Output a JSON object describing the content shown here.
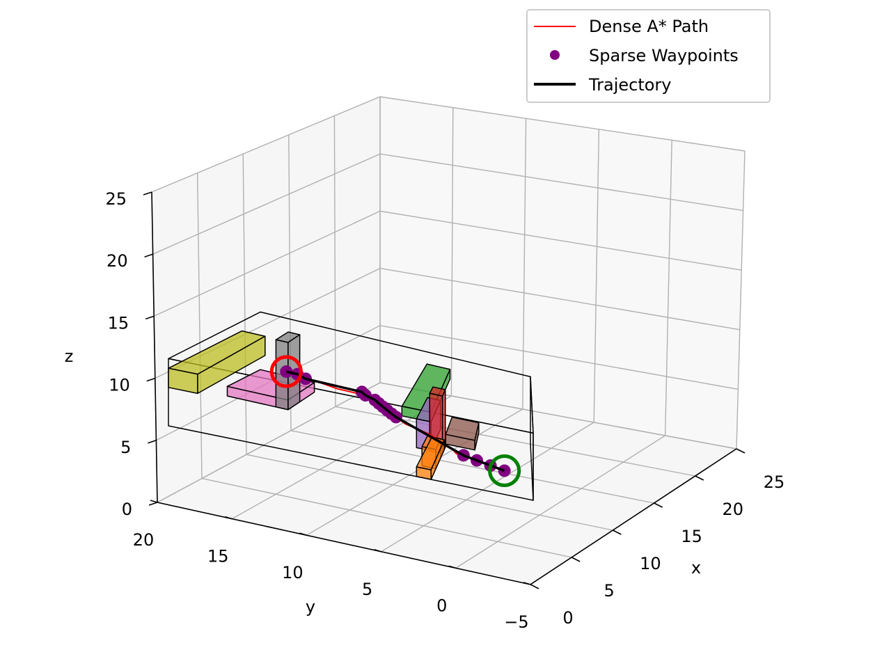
{
  "chart_data": {
    "type": "scatter",
    "projection": "3d",
    "xlabel": "x",
    "ylabel": "y",
    "zlabel": "z",
    "xlim": [
      0,
      25
    ],
    "ylim": [
      -5,
      20
    ],
    "zlim": [
      0,
      25
    ],
    "x_ticks": [
      "0",
      "5",
      "10",
      "15",
      "20",
      "25"
    ],
    "y_ticks": [
      "−5",
      "0",
      "5",
      "10",
      "15",
      "20"
    ],
    "z_ticks": [
      "0",
      "5",
      "10",
      "15",
      "20",
      "25"
    ],
    "grid": true,
    "legend_position": "top-right",
    "legend": [
      {
        "label": "Dense A* Path",
        "color": "#ff0000",
        "style": "line"
      },
      {
        "label": "Sparse Waypoints",
        "color": "#800080",
        "style": "marker"
      },
      {
        "label": "Trajectory",
        "color": "#000000",
        "style": "thick-line"
      }
    ],
    "series": [
      {
        "name": "Dense A* Path",
        "color": "#ff0000",
        "points": [
          [
            2,
            -3,
            2
          ],
          [
            3,
            -2,
            2
          ],
          [
            4,
            -1,
            2
          ],
          [
            5,
            0,
            2
          ],
          [
            5,
            0.5,
            2
          ],
          [
            7,
            1,
            2
          ],
          [
            9,
            2,
            2
          ],
          [
            11,
            3,
            2
          ],
          [
            13,
            5,
            2
          ],
          [
            15,
            6,
            2
          ],
          [
            17,
            7,
            2
          ],
          [
            19,
            8,
            2
          ],
          [
            21,
            10,
            2
          ],
          [
            21,
            12,
            2
          ],
          [
            22,
            14,
            2
          ],
          [
            22,
            15,
            2
          ],
          [
            22,
            16,
            2
          ],
          [
            23,
            17,
            2
          ]
        ]
      },
      {
        "name": "Sparse Waypoints",
        "color": "#800080",
        "points": [
          [
            2,
            -3,
            2
          ],
          [
            3,
            -2,
            2
          ],
          [
            4,
            -1,
            2
          ],
          [
            5,
            0,
            2
          ],
          [
            15,
            6,
            2
          ],
          [
            16,
            6.5,
            2
          ],
          [
            17,
            7,
            2
          ],
          [
            18,
            7.5,
            2
          ],
          [
            19,
            8,
            2
          ],
          [
            20,
            8.5,
            2
          ],
          [
            21,
            9.5,
            2
          ],
          [
            22,
            10,
            2
          ],
          [
            22,
            15,
            2
          ],
          [
            23,
            16,
            2
          ],
          [
            23,
            17,
            2
          ]
        ]
      },
      {
        "name": "Trajectory",
        "color": "#000000",
        "points": [
          [
            2,
            -3,
            2
          ],
          [
            3,
            -2,
            2
          ],
          [
            4,
            -1,
            2
          ],
          [
            5,
            0,
            2
          ],
          [
            15,
            6,
            2
          ],
          [
            16,
            6.5,
            2
          ],
          [
            17,
            7,
            2
          ],
          [
            18,
            7.5,
            2
          ],
          [
            19,
            8,
            2
          ],
          [
            20,
            8.5,
            2
          ],
          [
            21,
            9.5,
            2
          ],
          [
            22,
            10,
            2
          ],
          [
            22,
            15,
            2
          ],
          [
            23,
            16,
            2
          ],
          [
            23,
            17,
            2
          ]
        ]
      }
    ],
    "start": {
      "point": [
        2,
        -3,
        2
      ],
      "color": "#008000"
    },
    "goal": {
      "point": [
        23,
        17,
        2
      ],
      "color": "#ff0000"
    },
    "bounding_box": {
      "min": [
        0,
        -5,
        0
      ],
      "max": [
        25,
        20,
        7
      ]
    },
    "obstacles": [
      {
        "color": "#bcbd22",
        "min": [
          0,
          18,
          4
        ],
        "max": [
          20,
          20,
          6
        ]
      },
      {
        "color": "#e377c2",
        "min": [
          16,
          15,
          0
        ],
        "max": [
          25,
          20,
          1
        ]
      },
      {
        "color": "#7f7f7f",
        "min": [
          16,
          15,
          0
        ],
        "max": [
          20,
          16,
          7
        ]
      },
      {
        "color": "#2ca02c",
        "min": [
          0,
          2,
          6
        ],
        "max": [
          20,
          4,
          7
        ]
      },
      {
        "color": "#9467bd",
        "min": [
          0,
          2,
          3
        ],
        "max": [
          10,
          3,
          6
        ]
      },
      {
        "color": "#8c564b",
        "min": [
          0,
          -1,
          4
        ],
        "max": [
          8,
          1,
          5
        ]
      },
      {
        "color": "#d62728",
        "min": [
          12,
          2,
          0
        ],
        "max": [
          15,
          3,
          6
        ]
      },
      {
        "color": "#ff7f0e",
        "min": [
          5,
          2,
          0
        ],
        "max": [
          10,
          3,
          2
        ]
      },
      {
        "color": "#ff7f0e",
        "min": [
          0,
          2,
          0
        ],
        "max": [
          14,
          3,
          1
        ]
      }
    ]
  }
}
